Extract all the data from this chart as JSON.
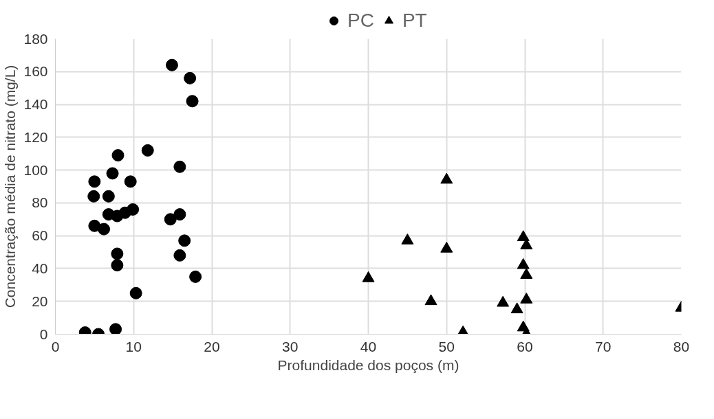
{
  "chart_data": {
    "type": "scatter",
    "xlabel": "Profundidade dos poços (m)",
    "ylabel": "Concentração média de nitrato (mg/L)",
    "xlim": [
      0,
      80
    ],
    "ylim": [
      0,
      180
    ],
    "xticks": [
      0,
      10,
      20,
      30,
      40,
      50,
      60,
      70,
      80
    ],
    "yticks": [
      0,
      20,
      40,
      60,
      80,
      100,
      120,
      140,
      160,
      180
    ],
    "grid": true,
    "legend": "top",
    "series": [
      {
        "name": "PC",
        "color": "#000000",
        "marker": "circle",
        "x": [
          14.9,
          17.2,
          17.5,
          11.8,
          8.0,
          15.9,
          7.3,
          9.6,
          5.0,
          4.9,
          6.8,
          6.8,
          7.9,
          8.9,
          9.9,
          14.7,
          15.9,
          5.0,
          6.2,
          16.5,
          15.9,
          7.9,
          7.9,
          17.9,
          10.3,
          3.8,
          5.5,
          7.7
        ],
        "values": [
          164,
          156,
          142,
          112,
          109,
          102,
          98,
          93,
          93,
          84,
          84,
          73,
          72,
          74,
          76,
          70,
          73,
          66,
          64,
          57,
          48,
          49,
          42,
          35,
          25,
          1,
          0,
          3
        ]
      },
      {
        "name": "PT",
        "color": "#000000",
        "marker": "triangle",
        "x": [
          50.0,
          45.0,
          50.0,
          40.0,
          48.0,
          57.2,
          59.0,
          60.2,
          52.1,
          80.0,
          59.8,
          60.2,
          59.8,
          60.2,
          59.8,
          60.2
        ],
        "values": [
          94,
          57,
          52,
          34,
          20,
          19,
          15,
          21,
          1,
          16,
          59,
          54,
          42,
          36,
          4,
          0
        ]
      }
    ]
  }
}
